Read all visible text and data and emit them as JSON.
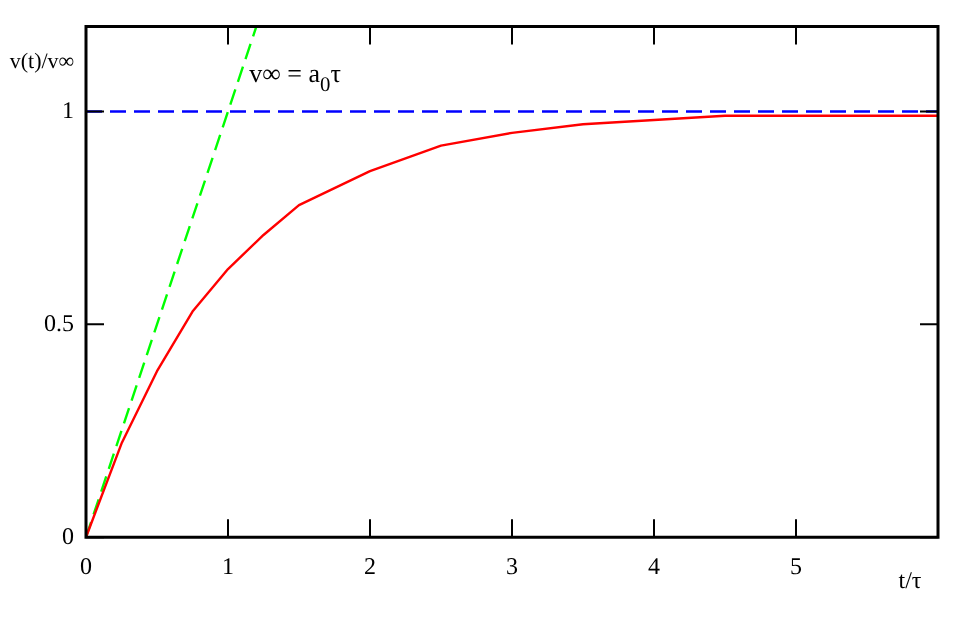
{
  "chart_data": {
    "type": "line",
    "xlabel": "t/τ",
    "ylabel": "v(t)/v∞",
    "x": [
      0,
      0.25,
      0.5,
      0.75,
      1,
      1.25,
      1.5,
      2,
      2.5,
      3,
      3.5,
      4,
      4.5,
      5,
      5.5,
      6
    ],
    "series": [
      {
        "color": "#ff0000",
        "values": [
          0,
          0.22,
          0.39,
          0.53,
          0.63,
          0.71,
          0.78,
          0.86,
          0.92,
          0.95,
          0.97,
          0.98,
          0.99,
          0.99,
          0.99,
          0.99
        ]
      },
      {
        "color": "#00ff00",
        "line_style": "dashed",
        "x": [
          0,
          1.2
        ],
        "values": [
          0,
          1.2
        ]
      }
    ],
    "ref_lines": [
      {
        "axis": "y",
        "value": 1,
        "color": "#0000ff",
        "line_style": "dashed"
      }
    ],
    "annotations": [
      {
        "text": "v∞ = a$_{0}$τ",
        "x": 1.15,
        "y": 1.07
      }
    ],
    "xlim": [
      0,
      6
    ],
    "xticks": [
      0,
      1,
      2,
      3,
      4,
      5
    ],
    "ylim": [
      0,
      1.2
    ],
    "yticks": [
      0,
      0.5,
      1
    ],
    "grid": false,
    "legend": false,
    "marker": "none"
  }
}
